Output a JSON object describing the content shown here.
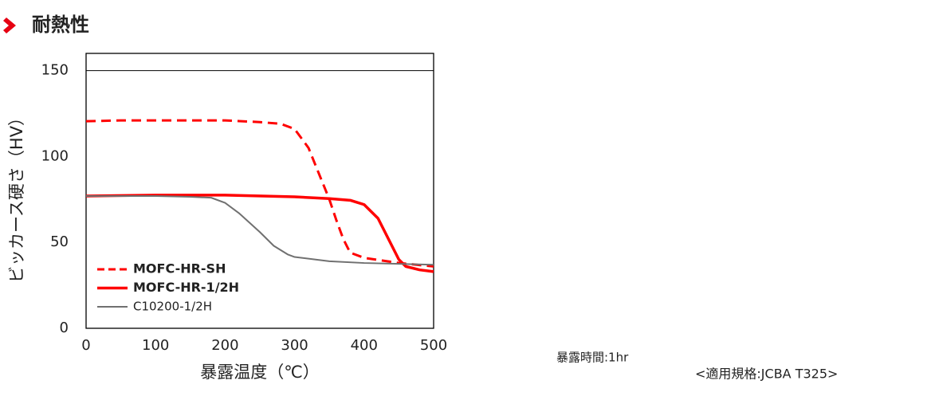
{
  "chart_data": {
    "type": "line",
    "title": "耐熱性",
    "xlabel": "暴露温度（℃）",
    "ylabel": "ビッカース硬さ（HV）",
    "annotations": [
      "暴露時間:1hr",
      "<適用規格:JCBA T325>"
    ],
    "xlim": [
      0,
      500
    ],
    "xticks": [
      0,
      100,
      200,
      300,
      400,
      500
    ],
    "ylim": [
      0,
      160
    ],
    "yticks": [
      0,
      50,
      100,
      150
    ],
    "legend": "lower left",
    "series": [
      {
        "name": "MOFC-HR-SH",
        "color": "#ff0000",
        "dashed": true,
        "x": [
          0,
          50,
          100,
          150,
          200,
          250,
          280,
          300,
          320,
          340,
          350,
          360,
          370,
          380,
          400,
          450,
          500
        ],
        "values": [
          120.5,
          121,
          121,
          121,
          121,
          120,
          119,
          116,
          105,
          85,
          75,
          63,
          52,
          44,
          41,
          38,
          36
        ]
      },
      {
        "name": "MOFC-HR-1/2H",
        "color": "#ff0000",
        "dashed": false,
        "x": [
          0,
          100,
          200,
          300,
          350,
          380,
          400,
          420,
          440,
          450,
          460,
          480,
          500
        ],
        "values": [
          77,
          77.5,
          77.5,
          76.5,
          75.5,
          74.5,
          72,
          64,
          48,
          40,
          36,
          34,
          33
        ]
      },
      {
        "name": "C10200-1/2H",
        "color": "#707070",
        "dashed": false,
        "x": [
          0,
          100,
          150,
          180,
          200,
          220,
          250,
          270,
          290,
          300,
          350,
          400,
          450,
          500
        ],
        "values": [
          77,
          77,
          76.5,
          76,
          73,
          67,
          56,
          48,
          43,
          41.5,
          39,
          38,
          37.5,
          37
        ]
      }
    ]
  }
}
